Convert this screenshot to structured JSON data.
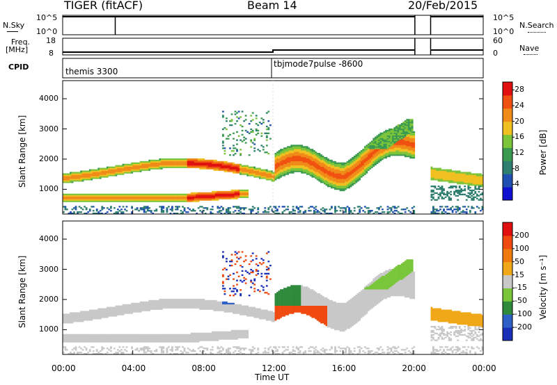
{
  "header": {
    "title_left": "TIGER (fitACF)",
    "title_center": "Beam 14",
    "title_right": "20/Feb/2015"
  },
  "strip_labels": {
    "nsky": "N.Sky",
    "nsky_ticks": [
      "10^5",
      "10^0"
    ],
    "nsearch": "N.Search",
    "nsearch_ticks": [
      "10^5",
      "10^0"
    ],
    "freq": "Freq.",
    "freq_unit": "[MHz]",
    "freq_ticks": [
      "18",
      "8"
    ],
    "nave": "Nave",
    "nave_ticks": [
      "60",
      "0"
    ],
    "cpid": "CPID",
    "cpid_modes": [
      "themis 3300",
      "tbjmode7pulse -8600"
    ]
  },
  "chart_data": [
    {
      "type": "heatmap",
      "name": "Power",
      "ylabel": "Slant Range [km]",
      "xlabel": "Time UT",
      "xticks": [
        "00:00",
        "04:00",
        "08:00",
        "12:00",
        "16:00",
        "20:00",
        "00:00"
      ],
      "xlim_hours": [
        0,
        24
      ],
      "yticks": [
        1000,
        2000,
        3000,
        4000
      ],
      "ylim_km": [
        180,
        4600
      ],
      "colorbar": {
        "label": "Power [dB]",
        "ticks": [
          4,
          8,
          12,
          16,
          20,
          24,
          28
        ],
        "range": [
          0,
          30
        ]
      },
      "data_gaps_hours": [
        [
          20.1,
          21.0
        ]
      ]
    },
    {
      "type": "heatmap",
      "name": "Velocity",
      "ylabel": "Slant Range [km]",
      "xlabel": "Time UT",
      "xticks": [
        "00:00",
        "04:00",
        "08:00",
        "12:00",
        "16:00",
        "20:00",
        "00:00"
      ],
      "xlim_hours": [
        0,
        24
      ],
      "yticks": [
        1000,
        2000,
        3000,
        4000
      ],
      "ylim_km": [
        180,
        4600
      ],
      "colorbar": {
        "label": "Velocity [m s⁻¹]",
        "ticks": [
          200,
          100,
          50,
          15,
          -15,
          -50,
          -100,
          -200
        ]
      },
      "data_gaps_hours": [
        [
          20.1,
          21.0
        ]
      ]
    }
  ],
  "colors": {
    "power": [
      "#1010d0",
      "#1f4fb0",
      "#2f7f70",
      "#3a9a50",
      "#7cc43a",
      "#f0c020",
      "#f08a18",
      "#f05010",
      "#e01010"
    ],
    "velocity": [
      "#1a2fb8",
      "#2f60c8",
      "#2f8a3c",
      "#79c63a",
      "#c8c8c8",
      "#f0a818",
      "#f07a10",
      "#f04a10",
      "#e01010"
    ]
  }
}
